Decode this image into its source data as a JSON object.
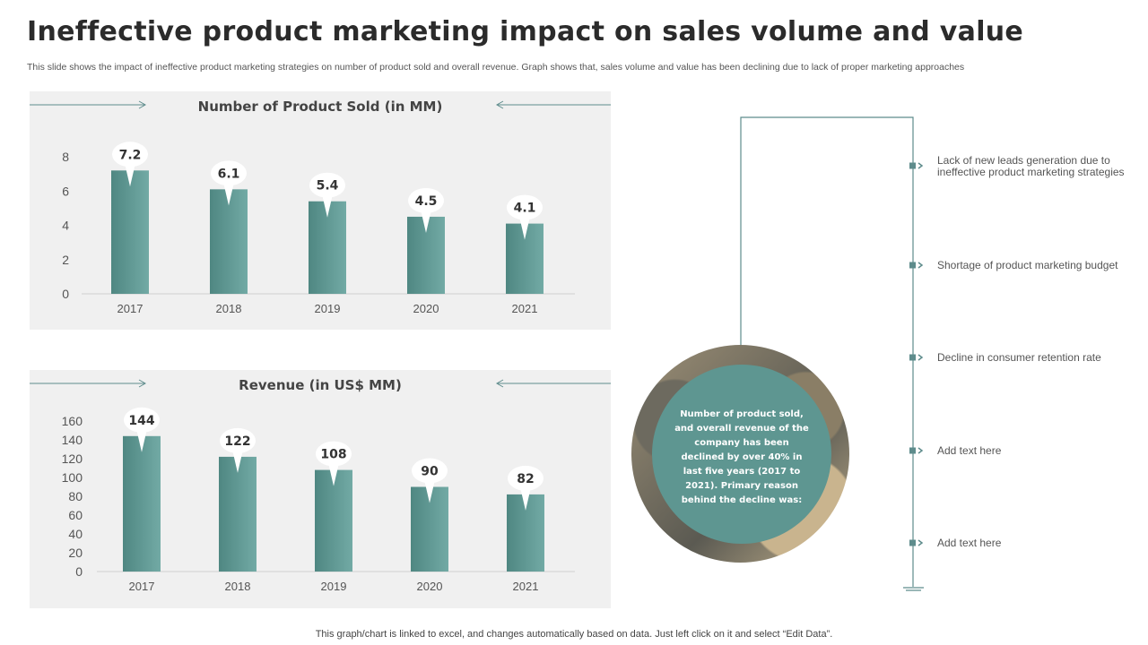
{
  "header": {
    "title": "Ineffective product marketing impact on sales volume and value",
    "subtitle": "This slide shows the impact of ineffective  product marketing strategies on number of product sold and overall revenue. Graph shows that, sales volume and value has been declining due to lack of proper marketing approaches"
  },
  "chart_data": [
    {
      "type": "bar",
      "title": "Number of Product Sold (in MM)",
      "categories": [
        "2017",
        "2018",
        "2019",
        "2020",
        "2021"
      ],
      "values": [
        7.2,
        6.1,
        5.4,
        4.5,
        4.1
      ],
      "labels": [
        "7.2",
        "6.1",
        "5.4",
        "4.5",
        "4.1"
      ],
      "yticks": [
        "8",
        "6",
        "4",
        "2",
        "0"
      ],
      "ylim": [
        0,
        8
      ],
      "grid": false,
      "bar_color": "#5e9691"
    },
    {
      "type": "bar",
      "title": "Revenue (in US$ MM)",
      "categories": [
        "2017",
        "2018",
        "2019",
        "2020",
        "2021"
      ],
      "values": [
        144,
        122,
        108,
        90,
        82
      ],
      "labels": [
        "144",
        "122",
        "108",
        "90",
        "82"
      ],
      "yticks": [
        "160",
        "140",
        "120",
        "100",
        "80",
        "60",
        "40",
        "20",
        "0"
      ],
      "ylim": [
        0,
        160
      ],
      "grid": false,
      "bar_color": "#5e9691"
    }
  ],
  "summary": {
    "text": "Number of product sold, and overall revenue of the company has been declined by over 40% in last five years (2017 to 2021). Primary reason behind the decline was:"
  },
  "reasons": [
    "Lack of new leads generation due to ineffective product marketing strategies",
    "Shortage of product marketing budget",
    "Decline in consumer retention rate",
    "Add text here",
    "Add text here"
  ],
  "footer": {
    "note": "This graph/chart is linked to excel,  and changes automatically based on data. Just left click on it and select “Edit Data”."
  },
  "colors": {
    "accent": "#5e9691",
    "panel": "#f0f0f0",
    "line": "#5e8c8c"
  }
}
